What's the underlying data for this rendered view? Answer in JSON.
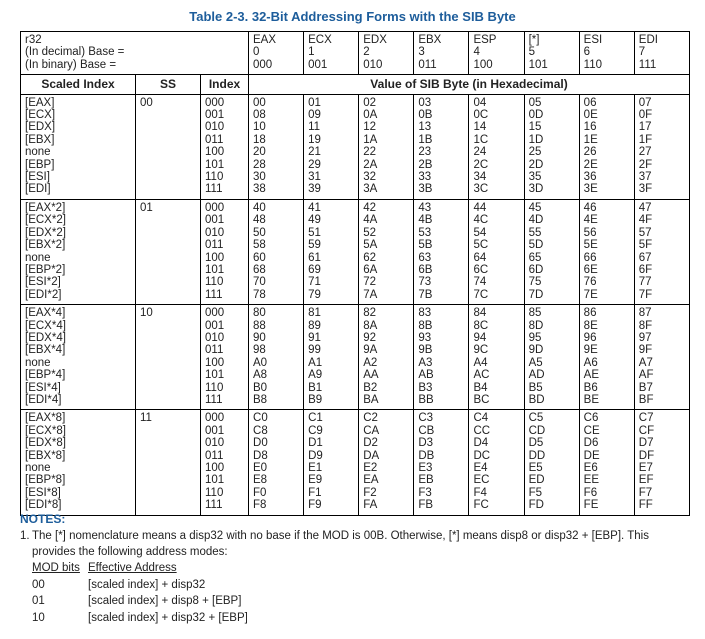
{
  "title": "Table 2-3.  32-Bit Addressing Forms with the SIB Byte",
  "base_header": {
    "labels": [
      "r32",
      "(In decimal) Base =",
      "(In binary) Base ="
    ],
    "registers": [
      {
        "name": "EAX",
        "decimal": "0",
        "binary": "000"
      },
      {
        "name": "ECX",
        "decimal": "1",
        "binary": "001"
      },
      {
        "name": "EDX",
        "decimal": "2",
        "binary": "010"
      },
      {
        "name": "EBX",
        "decimal": "3",
        "binary": "011"
      },
      {
        "name": "ESP",
        "decimal": "4",
        "binary": "100"
      },
      {
        "name": "[*]",
        "decimal": "5",
        "binary": "101"
      },
      {
        "name": "ESI",
        "decimal": "6",
        "binary": "110"
      },
      {
        "name": "EDI",
        "decimal": "7",
        "binary": "111"
      }
    ]
  },
  "columns": [
    "Scaled Index",
    "SS",
    "Index",
    "Value of SIB Byte (in Hexadecimal)"
  ],
  "groups": [
    {
      "ss": "00",
      "scaled_index": [
        "[EAX]",
        "[ECX]",
        "[EDX]",
        "[EBX]",
        "none",
        "[EBP]",
        "[ESI]",
        "[EDI]"
      ],
      "index": [
        "000",
        "001",
        "010",
        "011",
        "100",
        "101",
        "110",
        "111"
      ],
      "values": [
        [
          "00",
          "01",
          "02",
          "03",
          "04",
          "05",
          "06",
          "07"
        ],
        [
          "08",
          "09",
          "0A",
          "0B",
          "0C",
          "0D",
          "0E",
          "0F"
        ],
        [
          "10",
          "11",
          "12",
          "13",
          "14",
          "15",
          "16",
          "17"
        ],
        [
          "18",
          "19",
          "1A",
          "1B",
          "1C",
          "1D",
          "1E",
          "1F"
        ],
        [
          "20",
          "21",
          "22",
          "23",
          "24",
          "25",
          "26",
          "27"
        ],
        [
          "28",
          "29",
          "2A",
          "2B",
          "2C",
          "2D",
          "2E",
          "2F"
        ],
        [
          "30",
          "31",
          "32",
          "33",
          "34",
          "35",
          "36",
          "37"
        ],
        [
          "38",
          "39",
          "3A",
          "3B",
          "3C",
          "3D",
          "3E",
          "3F"
        ]
      ]
    },
    {
      "ss": "01",
      "scaled_index": [
        "[EAX*2]",
        "[ECX*2]",
        "[EDX*2]",
        "[EBX*2]",
        "none",
        "[EBP*2]",
        "[ESI*2]",
        "[EDI*2]"
      ],
      "index": [
        "000",
        "001",
        "010",
        "011",
        "100",
        "101",
        "110",
        "111"
      ],
      "values": [
        [
          "40",
          "41",
          "42",
          "43",
          "44",
          "45",
          "46",
          "47"
        ],
        [
          "48",
          "49",
          "4A",
          "4B",
          "4C",
          "4D",
          "4E",
          "4F"
        ],
        [
          "50",
          "51",
          "52",
          "53",
          "54",
          "55",
          "56",
          "57"
        ],
        [
          "58",
          "59",
          "5A",
          "5B",
          "5C",
          "5D",
          "5E",
          "5F"
        ],
        [
          "60",
          "61",
          "62",
          "63",
          "64",
          "65",
          "66",
          "67"
        ],
        [
          "68",
          "69",
          "6A",
          "6B",
          "6C",
          "6D",
          "6E",
          "6F"
        ],
        [
          "70",
          "71",
          "72",
          "73",
          "74",
          "75",
          "76",
          "77"
        ],
        [
          "78",
          "79",
          "7A",
          "7B",
          "7C",
          "7D",
          "7E",
          "7F"
        ]
      ]
    },
    {
      "ss": "10",
      "scaled_index": [
        "[EAX*4]",
        "[ECX*4]",
        "[EDX*4]",
        "[EBX*4]",
        "none",
        "[EBP*4]",
        "[ESI*4]",
        "[EDI*4]"
      ],
      "index": [
        "000",
        "001",
        "010",
        "011",
        "100",
        "101",
        "110",
        "111"
      ],
      "values": [
        [
          "80",
          "81",
          "82",
          "83",
          "84",
          "85",
          "86",
          "87"
        ],
        [
          "88",
          "89",
          "8A",
          "8B",
          "8C",
          "8D",
          "8E",
          "8F"
        ],
        [
          "90",
          "91",
          "92",
          "93",
          "94",
          "95",
          "96",
          "97"
        ],
        [
          "98",
          "99",
          "9A",
          "9B",
          "9C",
          "9D",
          "9E",
          "9F"
        ],
        [
          "A0",
          "A1",
          "A2",
          "A3",
          "A4",
          "A5",
          "A6",
          "A7"
        ],
        [
          "A8",
          "A9",
          "AA",
          "AB",
          "AC",
          "AD",
          "AE",
          "AF"
        ],
        [
          "B0",
          "B1",
          "B2",
          "B3",
          "B4",
          "B5",
          "B6",
          "B7"
        ],
        [
          "B8",
          "B9",
          "BA",
          "BB",
          "BC",
          "BD",
          "BE",
          "BF"
        ]
      ]
    },
    {
      "ss": "11",
      "scaled_index": [
        "[EAX*8]",
        "[ECX*8]",
        "[EDX*8]",
        "[EBX*8]",
        "none",
        "[EBP*8]",
        "[ESI*8]",
        "[EDI*8]"
      ],
      "index": [
        "000",
        "001",
        "010",
        "011",
        "100",
        "101",
        "110",
        "111"
      ],
      "values": [
        [
          "C0",
          "C1",
          "C2",
          "C3",
          "C4",
          "C5",
          "C6",
          "C7"
        ],
        [
          "C8",
          "C9",
          "CA",
          "CB",
          "CC",
          "CD",
          "CE",
          "CF"
        ],
        [
          "D0",
          "D1",
          "D2",
          "D3",
          "D4",
          "D5",
          "D6",
          "D7"
        ],
        [
          "D8",
          "D9",
          "DA",
          "DB",
          "DC",
          "DD",
          "DE",
          "DF"
        ],
        [
          "E0",
          "E1",
          "E2",
          "E3",
          "E4",
          "E5",
          "E6",
          "E7"
        ],
        [
          "E8",
          "E9",
          "EA",
          "EB",
          "EC",
          "ED",
          "EE",
          "EF"
        ],
        [
          "F0",
          "F1",
          "F2",
          "F3",
          "F4",
          "F5",
          "F6",
          "F7"
        ],
        [
          "F8",
          "F9",
          "FA",
          "FB",
          "FC",
          "FD",
          "FE",
          "FF"
        ]
      ]
    }
  ],
  "notes": {
    "heading": "NOTES:",
    "items": [
      {
        "number": "1.",
        "text": "The [*] nomenclature means a disp32 with no base if the MOD is 00B. Otherwise, [*] means disp8 or disp32 + [EBP]. This provides the following address modes:"
      }
    ],
    "modes": {
      "header": [
        "MOD bits",
        "Effective Address"
      ],
      "rows": [
        [
          "00",
          "[scaled index] + disp32"
        ],
        [
          "01",
          "[scaled index] + disp8 + [EBP]"
        ],
        [
          "10",
          "[scaled index] + disp32 + [EBP]"
        ]
      ]
    }
  }
}
